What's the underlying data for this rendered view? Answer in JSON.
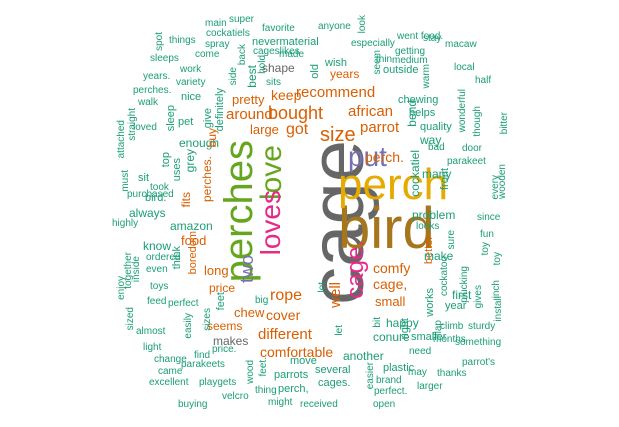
{
  "colors": {
    "teal": "#1b9e77",
    "orange": "#d95f02",
    "purple": "#7570b3",
    "pink": "#e7298a",
    "green": "#66a61e",
    "gold": "#e6ab02",
    "brown": "#a6761d",
    "gray": "#666666"
  },
  "words": [
    "cage",
    "bird",
    "perch",
    "perches",
    "love",
    "loves",
    "put",
    "cage.",
    "size",
    "bought",
    "recommend",
    "african",
    "parrot",
    "perch.",
    "got",
    "keep",
    "around",
    "large",
    "pretty",
    "two",
    "rope",
    "comfy",
    "cover",
    "different",
    "comfortable",
    "cage,",
    "small",
    "well",
    "food",
    "long",
    "price",
    "chew",
    "seems",
    "makes",
    "amazon",
    "enough",
    "fits",
    "grey",
    "buy",
    "give",
    "definitely",
    "best",
    "shape",
    "old",
    "years",
    "wish",
    "nevermaterial",
    "cageslikes",
    "especially",
    "outside",
    "seem",
    "getting",
    "chewing",
    "helps",
    "quality",
    "bend",
    "way",
    "cockatiel",
    "many",
    "front",
    "problem",
    "better",
    "make",
    "sure",
    "first",
    "year",
    "works",
    "happy",
    "smaller",
    "conure",
    "another",
    "right",
    "plastic",
    "brand",
    "perfect.",
    "several",
    "cages.",
    "move",
    "parrots",
    "perch,",
    "received",
    "might",
    "thing",
    "velcro",
    "playgets",
    "buying",
    "excellent",
    "came",
    "change",
    "light",
    "almost",
    "sized",
    "enjoy",
    "highly",
    "must",
    "attached",
    "purchased",
    "inside",
    "together",
    "toys",
    "even",
    "ordered",
    "know",
    "think",
    "always",
    "bird.",
    "took",
    "sit",
    "top",
    "uses",
    "perches.",
    "boredom",
    "feet",
    "feed",
    "perfect",
    "easily",
    "sizes",
    "parakeets",
    "find",
    "price.",
    "feet.",
    "wood",
    "big",
    "lot",
    "bit",
    "need",
    "months",
    "flap",
    "climb",
    "sturdy",
    "something",
    "inch",
    "install",
    "gives",
    "plucking",
    "fun",
    "toy",
    "looks",
    "cockatoo",
    "parakeet",
    "since",
    "wooden",
    "bitter",
    "every",
    "though",
    "door",
    "bad",
    "wonderful",
    "half",
    "local",
    "macaw",
    "stay",
    "went food.",
    "look",
    "anyone",
    "favorite",
    "super",
    "main",
    "cockatiels",
    "things",
    "spot",
    "spray",
    "come",
    "sleeps",
    "work",
    "back",
    "side",
    "made",
    "thin",
    "medium",
    "warm",
    "sits",
    "hold",
    "years.",
    "variety",
    "nice",
    "perches.",
    "walk",
    "pet",
    "loved",
    "sleep",
    "straight",
    "parrot's",
    "may",
    "thanks",
    "larger",
    "open",
    "easier",
    "let",
    "toy"
  ]
}
